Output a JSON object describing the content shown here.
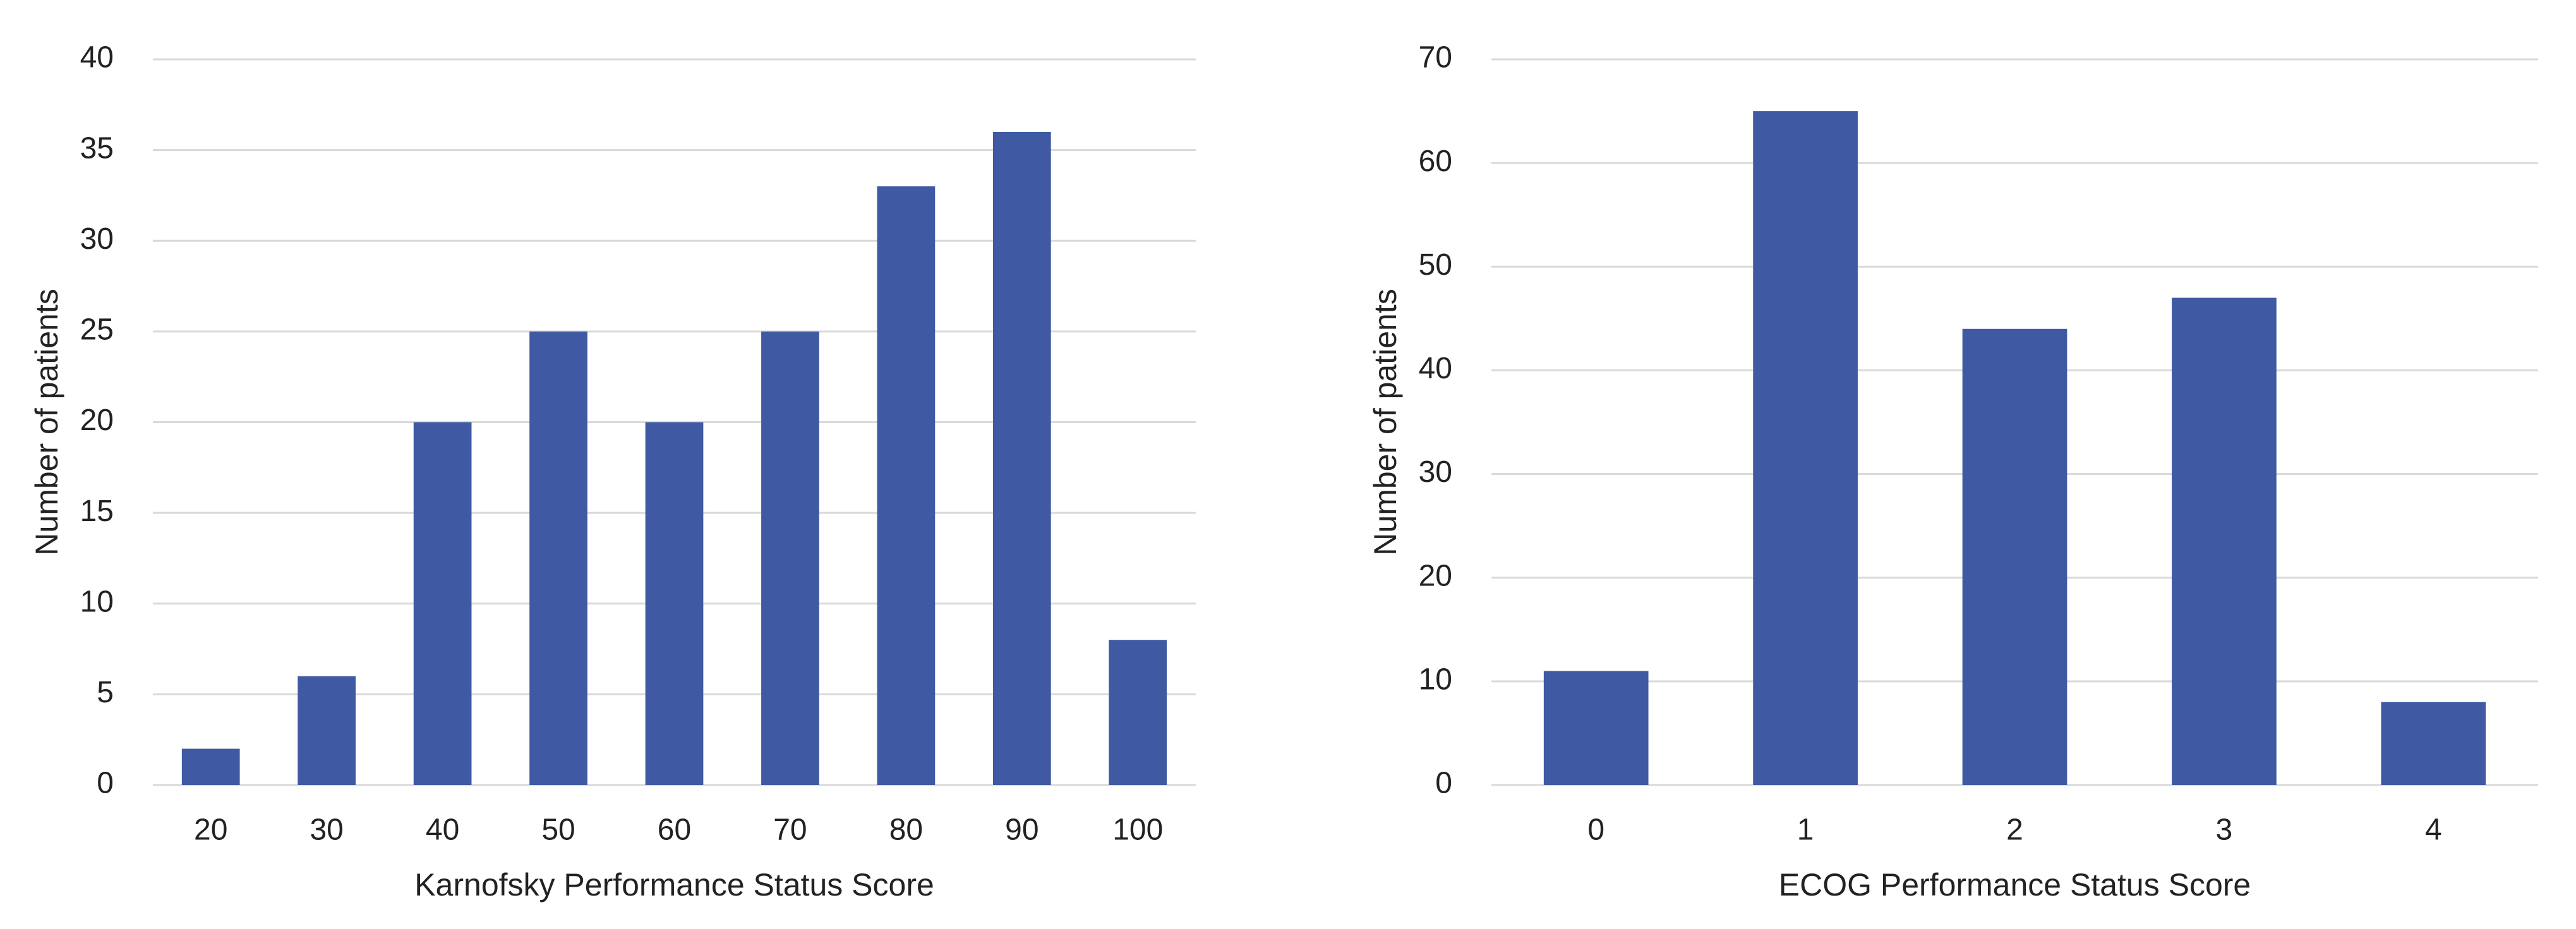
{
  "chart_data": [
    {
      "type": "bar",
      "x_label": "Karnofsky Performance Status Score",
      "y_label": "Number of patients",
      "categories": [
        "20",
        "30",
        "40",
        "50",
        "60",
        "70",
        "80",
        "90",
        "100"
      ],
      "values": [
        2,
        6,
        20,
        25,
        20,
        25,
        33,
        36,
        8
      ],
      "color": "#3f5aa3",
      "ylim": [
        0,
        40
      ],
      "yticks": [
        0,
        5,
        10,
        15,
        20,
        25,
        30,
        35,
        40
      ],
      "grid": true
    },
    {
      "type": "bar",
      "x_label": "ECOG Performance Status Score",
      "y_label": "Number of patients",
      "categories": [
        "0",
        "1",
        "2",
        "3",
        "4"
      ],
      "values": [
        11,
        65,
        44,
        47,
        8
      ],
      "color": "#3f5aa3",
      "ylim": [
        0,
        70
      ],
      "yticks": [
        0,
        10,
        20,
        30,
        40,
        50,
        60,
        70
      ],
      "grid": true
    }
  ]
}
